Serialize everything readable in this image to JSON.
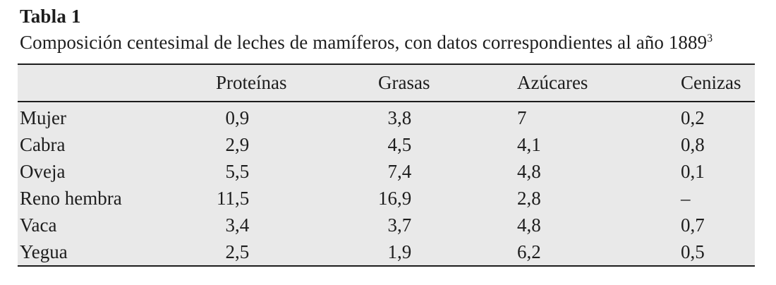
{
  "title": "Tabla 1",
  "caption": "Composición centesimal de leches de mamíferos, con datos correspondientes al año 1889",
  "caption_superscript": "3",
  "table": {
    "columns": [
      "Proteínas",
      "Grasas",
      "Azúcares",
      "Cenizas"
    ],
    "rows": [
      {
        "label": "Mujer",
        "values": [
          "0,9",
          "3,8",
          "7",
          "0,2"
        ]
      },
      {
        "label": "Cabra",
        "values": [
          "2,9",
          "4,5",
          "4,1",
          "0,8"
        ]
      },
      {
        "label": "Oveja",
        "values": [
          "5,5",
          "7,4",
          "4,8",
          "0,1"
        ]
      },
      {
        "label": "Reno hembra",
        "values": [
          "11,5",
          "16,9",
          "2,8",
          "–"
        ]
      },
      {
        "label": "Vaca",
        "values": [
          "3,4",
          "3,7",
          "4,8",
          "0,7"
        ]
      },
      {
        "label": "Yegua",
        "values": [
          "2,5",
          "1,9",
          "6,2",
          "0,5"
        ]
      }
    ]
  },
  "colors": {
    "page_background": "#ffffff",
    "table_band": "#e9e9e9",
    "rule": "#1c1c1c",
    "text": "#1d1d1d"
  }
}
